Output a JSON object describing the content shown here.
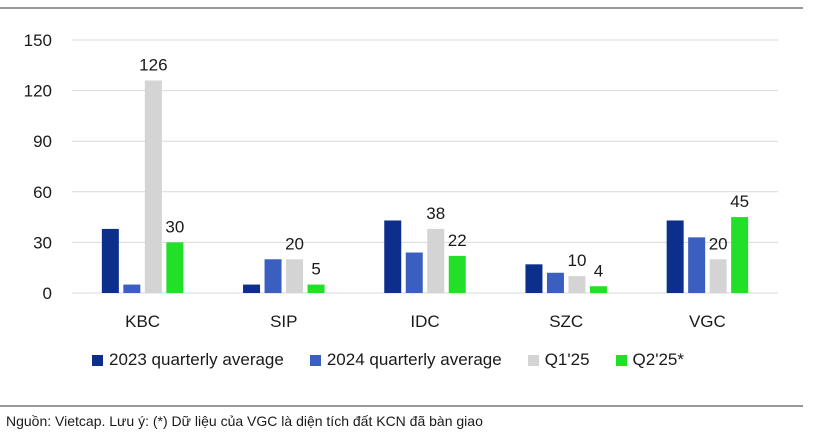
{
  "chart_data": {
    "type": "bar",
    "categories": [
      "KBC",
      "SIP",
      "IDC",
      "SZC",
      "VGC"
    ],
    "series": [
      {
        "name": "2023 quarterly average",
        "color": "#0d2f8c",
        "values": [
          38,
          5,
          43,
          17,
          43
        ]
      },
      {
        "name": "2024 quarterly average",
        "color": "#3a5fc0",
        "values": [
          5,
          20,
          24,
          12,
          33
        ]
      },
      {
        "name": "Q1'25",
        "color": "#d4d4d4",
        "values": [
          126,
          20,
          38,
          10,
          20
        ]
      },
      {
        "name": "Q2'25*",
        "color": "#22e02a",
        "values": [
          30,
          5,
          22,
          4,
          45
        ]
      }
    ],
    "data_labels": [
      {
        "category": "KBC",
        "series": "Q1'25",
        "text": "126"
      },
      {
        "category": "KBC",
        "series": "Q2'25*",
        "text": "30"
      },
      {
        "category": "SIP",
        "series": "Q1'25",
        "text": "20"
      },
      {
        "category": "SIP",
        "series": "Q2'25*",
        "text": "5"
      },
      {
        "category": "IDC",
        "series": "Q1'25",
        "text": "38"
      },
      {
        "category": "IDC",
        "series": "Q2'25*",
        "text": "22"
      },
      {
        "category": "SZC",
        "series": "Q1'25",
        "text": "10"
      },
      {
        "category": "SZC",
        "series": "Q2'25*",
        "text": "4"
      },
      {
        "category": "VGC",
        "series": "Q1'25",
        "text": "20"
      },
      {
        "category": "VGC",
        "series": "Q2'25*",
        "text": "45"
      }
    ],
    "yticks": [
      "0",
      "30",
      "60",
      "90",
      "120",
      "150"
    ],
    "ylim": [
      0,
      150
    ],
    "grid": true,
    "legend_position": "bottom",
    "title": "",
    "xlabel": "",
    "ylabel": ""
  },
  "footer": {
    "source": "Nguồn: Vietcap. Lưu ý: (*) Dữ liệu của VGC là diện tích đất KCN đã bàn giao"
  }
}
